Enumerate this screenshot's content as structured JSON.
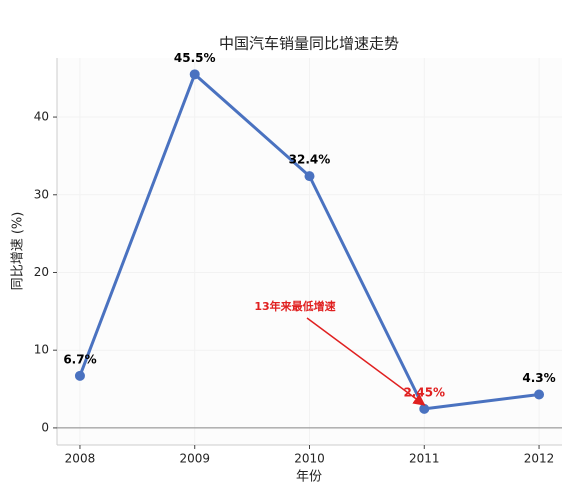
{
  "chart_data": {
    "type": "line",
    "title": "中国汽车销量同比增速走势",
    "xlabel": "年份",
    "ylabel": "同比增速 (%)",
    "x": [
      2008,
      2009,
      2010,
      2011,
      2012
    ],
    "series": [
      {
        "name": "同比增速",
        "color": "#4a72c0",
        "values": [
          6.7,
          45.5,
          32.4,
          2.45,
          4.3
        ],
        "value_labels": [
          "6.7%",
          "45.5%",
          "32.4%",
          "2.45%",
          "4.3%"
        ],
        "value_label_colors": [
          "#000000",
          "#000000",
          "#000000",
          "#e02020",
          "#000000"
        ]
      }
    ],
    "xlim": [
      2007.8,
      2012.2
    ],
    "xticks": [
      2008,
      2009,
      2010,
      2011,
      2012
    ],
    "ylim": [
      -2.2,
      47.6
    ],
    "yticks": [
      0,
      10,
      20,
      30,
      40
    ],
    "grid": true,
    "zero_line": true,
    "annotation": {
      "text": "13年来最低增速",
      "color": "#e02020"
    }
  }
}
